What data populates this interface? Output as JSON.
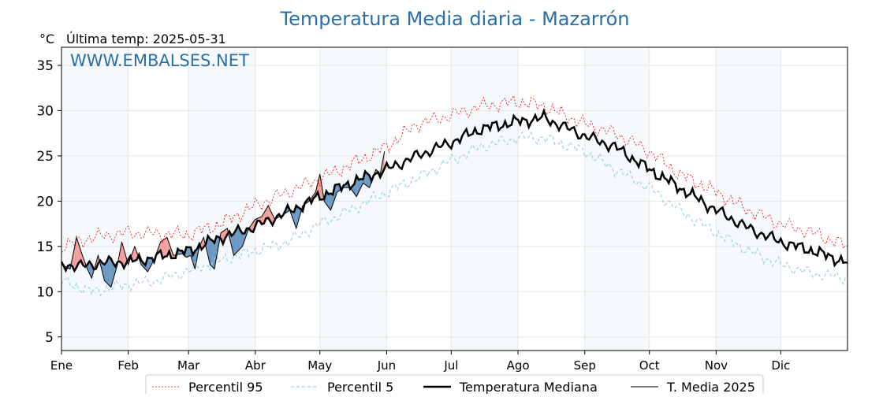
{
  "chart_data": {
    "type": "line",
    "title": "Temperatura Media diaria - Mazarrón",
    "unit_label": "°C",
    "subtitle": "Última temp: 2025-05-31",
    "watermark": "WWW.EMBALSES.NET",
    "ylim": [
      3.5,
      37
    ],
    "yticks": [
      5,
      10,
      15,
      20,
      25,
      30,
      35
    ],
    "x_unit": "day of year",
    "xlim": [
      1,
      366
    ],
    "month_ticks": [
      {
        "label": "Ene",
        "day": 1
      },
      {
        "label": "Feb",
        "day": 32
      },
      {
        "label": "Mar",
        "day": 60
      },
      {
        "label": "Abr",
        "day": 91
      },
      {
        "label": "May",
        "day": 121
      },
      {
        "label": "Jun",
        "day": 152
      },
      {
        "label": "Jul",
        "day": 182
      },
      {
        "label": "Ago",
        "day": 213
      },
      {
        "label": "Sep",
        "day": 244
      },
      {
        "label": "Oct",
        "day": 274
      },
      {
        "label": "Nov",
        "day": 305
      },
      {
        "label": "Dic",
        "day": 335
      }
    ],
    "grid": true,
    "legend_position": "bottom-center",
    "colors": {
      "p95": "#ff0000",
      "p5": "#9fd0e0",
      "median": "#000000",
      "current": "#000000",
      "above_fill": "#f08080",
      "below_fill": "#4a7fb5",
      "title": "#2a6fa8",
      "band": "#f5f9fc"
    },
    "legend": [
      {
        "key": "p95",
        "label": "Percentil 95"
      },
      {
        "key": "p5",
        "label": "Percentil 5"
      },
      {
        "key": "median",
        "label": "Temperatura Mediana"
      },
      {
        "key": "current",
        "label": "T. Media 2025"
      }
    ],
    "anchors": {
      "median": [
        [
          1,
          13.0
        ],
        [
          10,
          12.8
        ],
        [
          20,
          13.2
        ],
        [
          32,
          13.3
        ],
        [
          45,
          13.8
        ],
        [
          60,
          14.5
        ],
        [
          75,
          16.0
        ],
        [
          91,
          17.2
        ],
        [
          106,
          18.8
        ],
        [
          121,
          20.5
        ],
        [
          135,
          22.0
        ],
        [
          152,
          23.5
        ],
        [
          166,
          25.0
        ],
        [
          182,
          26.5
        ],
        [
          196,
          28.0
        ],
        [
          213,
          28.8
        ],
        [
          225,
          29.2
        ],
        [
          244,
          27.2
        ],
        [
          258,
          26.0
        ],
        [
          274,
          23.5
        ],
        [
          288,
          21.5
        ],
        [
          305,
          19.0
        ],
        [
          320,
          17.0
        ],
        [
          335,
          15.5
        ],
        [
          350,
          14.5
        ],
        [
          366,
          13.2
        ]
      ],
      "p95": [
        [
          1,
          15.0
        ],
        [
          15,
          16.0
        ],
        [
          32,
          16.5
        ],
        [
          60,
          16.3
        ],
        [
          75,
          17.5
        ],
        [
          91,
          19.5
        ],
        [
          106,
          21.0
        ],
        [
          121,
          22.5
        ],
        [
          135,
          24.0
        ],
        [
          152,
          26.0
        ],
        [
          166,
          28.5
        ],
        [
          182,
          29.5
        ],
        [
          196,
          30.5
        ],
        [
          213,
          31.0
        ],
        [
          225,
          30.5
        ],
        [
          244,
          28.5
        ],
        [
          258,
          27.5
        ],
        [
          274,
          25.5
        ],
        [
          288,
          23.0
        ],
        [
          305,
          21.0
        ],
        [
          320,
          19.0
        ],
        [
          335,
          17.5
        ],
        [
          350,
          16.5
        ],
        [
          366,
          15.0
        ]
      ],
      "p5": [
        [
          1,
          11.2
        ],
        [
          15,
          10.0
        ],
        [
          32,
          10.8
        ],
        [
          45,
          11.2
        ],
        [
          60,
          12.3
        ],
        [
          75,
          13.5
        ],
        [
          91,
          14.5
        ],
        [
          106,
          15.5
        ],
        [
          121,
          17.5
        ],
        [
          135,
          19.0
        ],
        [
          152,
          21.0
        ],
        [
          166,
          22.5
        ],
        [
          182,
          24.5
        ],
        [
          196,
          26.0
        ],
        [
          213,
          27.0
        ],
        [
          225,
          27.0
        ],
        [
          244,
          25.5
        ],
        [
          258,
          23.5
        ],
        [
          274,
          21.5
        ],
        [
          288,
          19.0
        ],
        [
          305,
          16.5
        ],
        [
          320,
          14.5
        ],
        [
          335,
          13.0
        ],
        [
          350,
          12.0
        ],
        [
          366,
          11.5
        ]
      ],
      "current": [
        [
          1,
          13.0
        ],
        [
          5,
          12.5
        ],
        [
          8,
          16.0
        ],
        [
          10,
          14.5
        ],
        [
          13,
          12.5
        ],
        [
          15,
          11.5
        ],
        [
          18,
          14.0
        ],
        [
          21,
          11.2
        ],
        [
          24,
          10.5
        ],
        [
          27,
          13.0
        ],
        [
          29,
          15.5
        ],
        [
          32,
          13.0
        ],
        [
          35,
          15.0
        ],
        [
          38,
          13.0
        ],
        [
          41,
          12.2
        ],
        [
          44,
          13.5
        ],
        [
          47,
          15.5
        ],
        [
          50,
          16.0
        ],
        [
          53,
          14.0
        ],
        [
          57,
          14.2
        ],
        [
          59,
          13.8
        ],
        [
          61,
          14.0
        ],
        [
          63,
          12.5
        ],
        [
          65,
          15.0
        ],
        [
          67,
          16.0
        ],
        [
          70,
          13.0
        ],
        [
          72,
          12.5
        ],
        [
          75,
          16.5
        ],
        [
          78,
          17.0
        ],
        [
          81,
          14.0
        ],
        [
          85,
          15.0
        ],
        [
          88,
          17.0
        ],
        [
          91,
          18.0
        ],
        [
          94,
          18.3
        ],
        [
          97,
          19.5
        ],
        [
          100,
          18.0
        ],
        [
          104,
          18.5
        ],
        [
          107,
          19.0
        ],
        [
          110,
          17.0
        ],
        [
          113,
          19.5
        ],
        [
          116,
          20.0
        ],
        [
          119,
          21.0
        ],
        [
          121,
          23.0
        ],
        [
          123,
          20.0
        ],
        [
          126,
          19.0
        ],
        [
          129,
          21.0
        ],
        [
          132,
          21.5
        ],
        [
          135,
          21.5
        ],
        [
          138,
          20.5
        ],
        [
          141,
          22.0
        ],
        [
          144,
          21.5
        ],
        [
          147,
          23.5
        ],
        [
          149,
          23.0
        ],
        [
          151,
          25.5
        ]
      ]
    }
  }
}
